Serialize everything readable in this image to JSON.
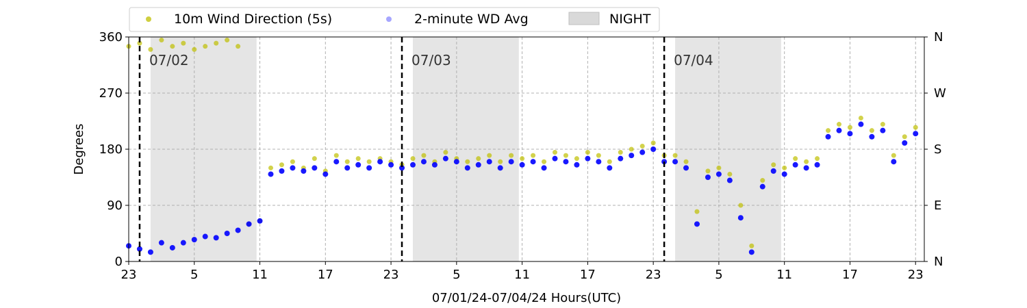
{
  "chart_data": {
    "type": "scatter",
    "xlabel": "07/01/24-07/04/24  Hours(UTC)",
    "ylabel": "Degrees",
    "x_unit": "hours since 07/01 23:00 UTC",
    "xlim": [
      0,
      72.8
    ],
    "ylim": [
      0,
      360
    ],
    "x_tick_values": [
      0,
      6,
      12,
      18,
      24,
      30,
      36,
      42,
      48,
      54,
      60,
      66,
      72
    ],
    "x_tick_labels": [
      "23",
      "5",
      "11",
      "17",
      "23",
      "5",
      "11",
      "17",
      "23",
      "5",
      "11",
      "17",
      "23"
    ],
    "y_ticks": [
      0,
      90,
      180,
      270,
      360
    ],
    "y_tick_labels": [
      "0",
      "90",
      "180",
      "270",
      "360"
    ],
    "y2_tick_labels": [
      "N",
      "E",
      "S",
      "W",
      "N"
    ],
    "grid": true,
    "legend_position": "top-left (above plot, 3 columns)",
    "legend": [
      {
        "label": "10m Wind Direction (5s)",
        "kind": "marker",
        "color": "#bfbf00"
      },
      {
        "label": "2-minute WD Avg",
        "kind": "marker",
        "color": "#0000ff"
      },
      {
        "label": "NIGHT",
        "kind": "patch",
        "color": "#d9d9d9"
      }
    ],
    "day_markers": [
      {
        "x": 1.0,
        "label": "07/02"
      },
      {
        "x": 25.0,
        "label": "07/03"
      },
      {
        "x": 49.0,
        "label": "07/04"
      }
    ],
    "night_periods": [
      [
        2.0,
        11.7
      ],
      [
        26.0,
        35.7
      ],
      [
        50.0,
        59.7
      ]
    ],
    "series": [
      {
        "name": "2-minute WD Avg",
        "color": "#0000ff",
        "x": [
          0,
          1,
          2,
          3,
          4,
          5,
          6,
          7,
          8,
          9,
          10,
          11,
          12,
          13,
          14,
          15,
          16,
          17,
          18,
          19,
          20,
          21,
          22,
          23,
          24,
          25,
          26,
          27,
          28,
          29,
          30,
          31,
          32,
          33,
          34,
          35,
          36,
          37,
          38,
          39,
          40,
          41,
          42,
          43,
          44,
          45,
          46,
          47,
          48,
          49,
          50,
          51,
          52,
          53,
          54,
          55,
          56,
          57,
          58,
          59,
          60,
          61,
          62,
          63,
          64,
          65,
          66,
          67,
          68,
          69,
          70,
          71,
          72
        ],
        "y": [
          25,
          20,
          15,
          30,
          22,
          30,
          35,
          40,
          38,
          45,
          50,
          60,
          65,
          140,
          145,
          150,
          145,
          150,
          140,
          160,
          150,
          155,
          150,
          160,
          155,
          150,
          155,
          160,
          155,
          165,
          160,
          150,
          155,
          160,
          150,
          160,
          155,
          160,
          150,
          165,
          160,
          155,
          165,
          160,
          150,
          165,
          170,
          175,
          180,
          160,
          160,
          150,
          60,
          135,
          140,
          130,
          70,
          15,
          120,
          145,
          140,
          155,
          150,
          155,
          200,
          210,
          205,
          220,
          200,
          210,
          160,
          190,
          205
        ]
      },
      {
        "name": "10m Wind Direction (5s)",
        "color": "#bfbf00",
        "x": [
          0,
          1,
          2,
          3,
          4,
          5,
          6,
          7,
          8,
          9,
          10,
          11,
          12,
          13,
          14,
          15,
          16,
          17,
          18,
          19,
          20,
          21,
          22,
          23,
          24,
          25,
          26,
          27,
          28,
          29,
          30,
          31,
          32,
          33,
          34,
          35,
          36,
          37,
          38,
          39,
          40,
          41,
          42,
          43,
          44,
          45,
          46,
          47,
          48,
          49,
          50,
          51,
          52,
          53,
          54,
          55,
          56,
          57,
          58,
          59,
          60,
          61,
          62,
          63,
          64,
          65,
          66,
          67,
          68,
          69,
          70,
          71,
          72
        ],
        "y": [
          345,
          350,
          340,
          355,
          345,
          350,
          340,
          345,
          350,
          355,
          345,
          60,
          65,
          150,
          155,
          160,
          150,
          165,
          145,
          170,
          160,
          165,
          160,
          165,
          160,
          155,
          165,
          170,
          160,
          175,
          165,
          160,
          165,
          170,
          160,
          170,
          165,
          170,
          160,
          175,
          170,
          165,
          175,
          170,
          160,
          175,
          180,
          185,
          190,
          170,
          170,
          160,
          80,
          145,
          150,
          140,
          90,
          25,
          130,
          155,
          150,
          165,
          160,
          165,
          210,
          220,
          215,
          230,
          210,
          220,
          170,
          200,
          215
        ]
      }
    ]
  }
}
